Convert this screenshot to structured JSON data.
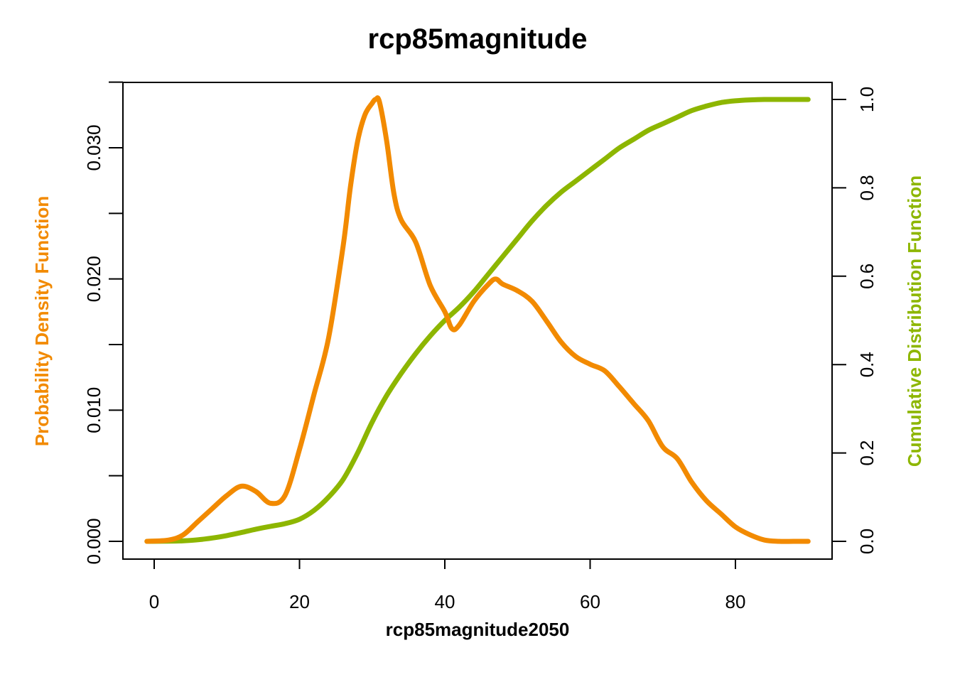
{
  "chart_data": {
    "type": "line",
    "title": "rcp85magnitude",
    "xlabel": "rcp85magnitude2050",
    "ylabel_left": "Probability Density Function",
    "ylabel_right": "Cumulative Distribution Function",
    "xlim": [
      -1,
      90
    ],
    "ylim_left": [
      0,
      0.0335
    ],
    "ylim_right": [
      0,
      1.0
    ],
    "x_ticks": [
      "0",
      "20",
      "40",
      "60",
      "80"
    ],
    "y_left_ticks": [
      "0.000",
      "0.010",
      "0.020",
      "0.030"
    ],
    "y_left_minor_ticks": [
      0.005,
      0.015,
      0.025,
      0.035
    ],
    "y_right_ticks": [
      "0.0",
      "0.2",
      "0.4",
      "0.6",
      "0.8",
      "1.0"
    ],
    "grid": false,
    "colors": {
      "pdf": "#F28A00",
      "cdf": "#8DB600"
    },
    "series": [
      {
        "name": "Probability Density Function",
        "axis": "left",
        "x": [
          -1,
          2,
          4,
          6,
          8,
          10,
          12,
          14,
          16,
          18,
          20,
          22,
          24,
          26,
          27,
          28,
          29,
          30,
          30.5,
          31,
          32,
          33,
          34,
          36,
          38,
          40,
          41,
          42,
          44,
          46,
          47,
          48,
          50,
          52,
          54,
          56,
          58,
          60,
          62,
          64,
          66,
          68,
          70,
          72,
          74,
          76,
          78,
          80,
          82,
          84,
          86,
          88,
          90
        ],
        "y": [
          0.0,
          0.0001,
          0.0005,
          0.0015,
          0.0025,
          0.0035,
          0.0042,
          0.0038,
          0.0029,
          0.0035,
          0.007,
          0.0112,
          0.0155,
          0.0225,
          0.027,
          0.0305,
          0.0325,
          0.0334,
          0.0337,
          0.0335,
          0.0305,
          0.0265,
          0.0245,
          0.0228,
          0.0195,
          0.0175,
          0.0162,
          0.0165,
          0.0183,
          0.0196,
          0.02,
          0.0196,
          0.0191,
          0.0183,
          0.0168,
          0.0152,
          0.0141,
          0.0135,
          0.013,
          0.0118,
          0.0105,
          0.0092,
          0.0072,
          0.0063,
          0.0045,
          0.0031,
          0.0021,
          0.0011,
          0.0005,
          0.0001,
          0.0,
          0.0,
          0.0
        ]
      },
      {
        "name": "Cumulative Distribution Function",
        "axis": "right",
        "x": [
          -1,
          2,
          4,
          6,
          8,
          10,
          12,
          14,
          16,
          18,
          20,
          22,
          24,
          26,
          28,
          30,
          32,
          34,
          36,
          38,
          40,
          42,
          44,
          46,
          48,
          50,
          52,
          54,
          56,
          58,
          60,
          62,
          64,
          66,
          68,
          70,
          72,
          74,
          76,
          78,
          80,
          82,
          84,
          86,
          88,
          90
        ],
        "y": [
          0.0,
          0.0003,
          0.0012,
          0.0035,
          0.0075,
          0.013,
          0.02,
          0.0275,
          0.034,
          0.04,
          0.05,
          0.07,
          0.1,
          0.14,
          0.2,
          0.27,
          0.33,
          0.38,
          0.425,
          0.465,
          0.5,
          0.53,
          0.565,
          0.605,
          0.645,
          0.685,
          0.725,
          0.76,
          0.79,
          0.815,
          0.84,
          0.865,
          0.89,
          0.91,
          0.93,
          0.945,
          0.96,
          0.975,
          0.985,
          0.993,
          0.997,
          0.999,
          1.0,
          1.0,
          1.0,
          1.0
        ]
      }
    ]
  }
}
